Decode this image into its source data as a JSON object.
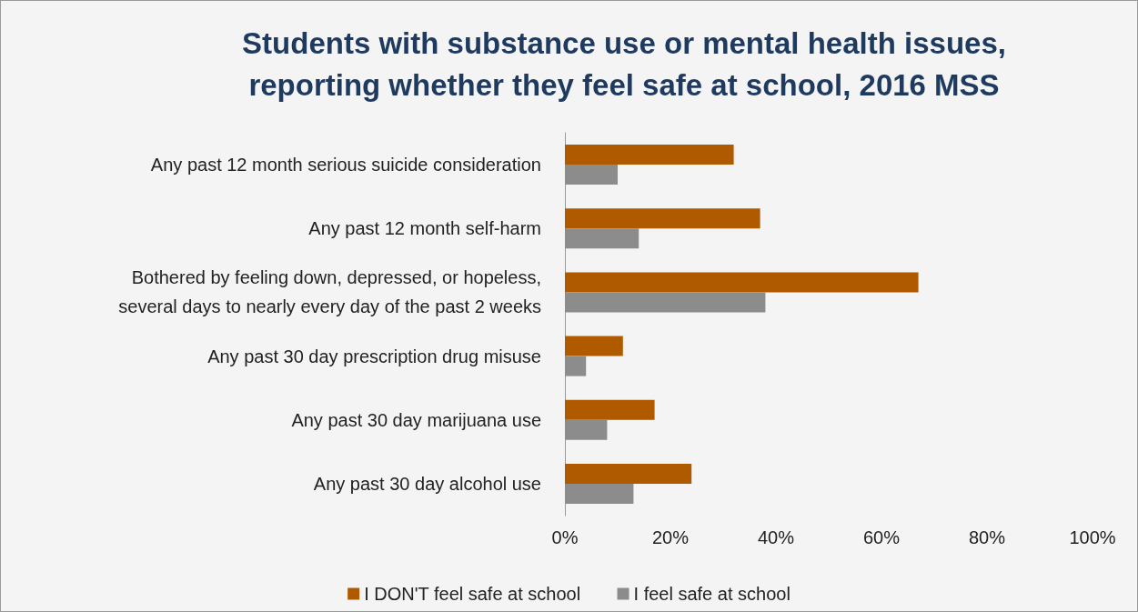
{
  "chart_data": {
    "type": "bar",
    "orientation": "horizontal",
    "title": "Students with substance use or mental health issues,\nreporting whether they feel safe at school, 2016 MSS",
    "categories": [
      "Any past 12 month serious suicide consideration",
      "Any past 12 month self-harm",
      "Bothered by feeling down, depressed, or hopeless,\nseveral days to nearly every day of the past 2 weeks",
      "Any past 30 day prescription drug misuse",
      "Any past 30 day marijuana use",
      "Any past 30 day alcohol use"
    ],
    "series": [
      {
        "name": "I DON'T feel safe at school",
        "color": "#b05a00",
        "values": [
          32,
          37,
          67,
          11,
          17,
          24
        ]
      },
      {
        "name": "I feel safe at school",
        "color": "#8c8c8c",
        "values": [
          10,
          14,
          38,
          4,
          8,
          13
        ]
      }
    ],
    "xlim": [
      0,
      100
    ],
    "xticks": [
      {
        "value": 0,
        "label": "0%"
      },
      {
        "value": 20,
        "label": "20%"
      },
      {
        "value": 40,
        "label": "40%"
      },
      {
        "value": 60,
        "label": "60%"
      },
      {
        "value": 80,
        "label": "80%"
      },
      {
        "value": 100,
        "label": "100%"
      }
    ],
    "grid": false,
    "legend": "bottom"
  }
}
